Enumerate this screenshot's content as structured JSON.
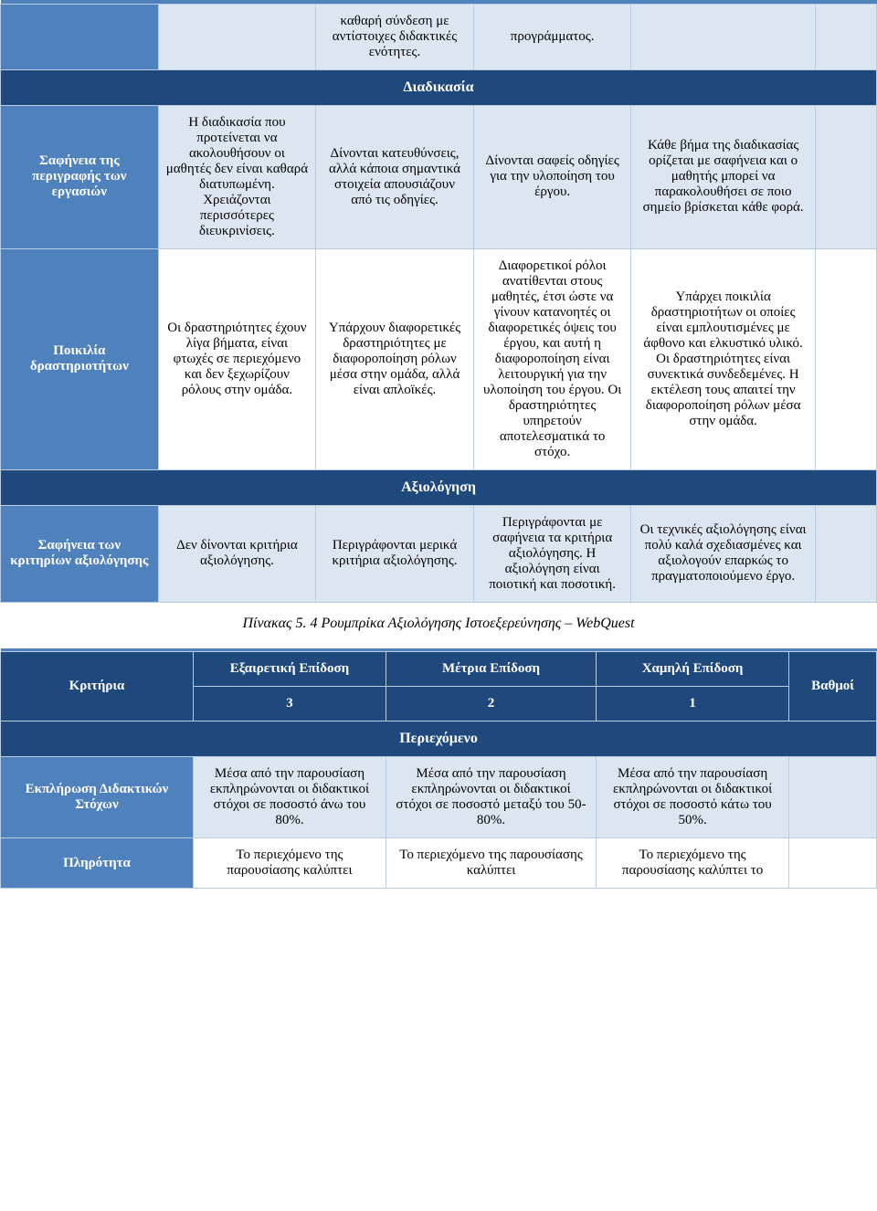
{
  "table1": {
    "fragmentRow": {
      "col2": "καθαρή σύνδεση με αντίστοιχες διδακτικές ενότητες.",
      "col3": "προγράμματος."
    },
    "section1": "Διαδικασία",
    "row1": {
      "header": "Σαφήνεια της περιγραφής των εργασιών",
      "c1": "Η διαδικασία που προτείνεται να ακολουθήσουν οι μαθητές δεν είναι καθαρά διατυπωμένη. Χρειάζονται περισσότερες διευκρινίσεις.",
      "c2": "Δίνονται κατευθύνσεις, αλλά κάποια σημαντικά στοιχεία απουσιάζουν από τις οδηγίες.",
      "c3": "Δίνονται σαφείς οδηγίες για την υλοποίηση του έργου.",
      "c4": "Κάθε βήμα της διαδικασίας ορίζεται με σαφήνεια και ο μαθητής μπορεί να παρακολουθήσει σε ποιο σημείο βρίσκεται κάθε φορά."
    },
    "row2": {
      "header": "Ποικιλία δραστηριοτήτων",
      "c1": "Οι δραστηριότητες έχουν λίγα βήματα, είναι φτωχές σε περιεχόμενο και δεν ξεχωρίζουν ρόλους στην ομάδα.",
      "c2": "Υπάρχουν διαφορετικές δραστηριότητες με διαφοροποίηση ρόλων μέσα στην ομάδα, αλλά είναι απλοϊκές.",
      "c3": "Διαφορετικοί ρόλοι ανατίθενται στους μαθητές, έτσι ώστε να γίνουν κατανοητές οι διαφορετικές όψεις του έργου, και αυτή η διαφοροποίηση είναι λειτουργική για την υλοποίηση του έργου. Οι δραστηριότητες υπηρετούν αποτελεσματικά το στόχο.",
      "c4": "Υπάρχει ποικιλία δραστηριοτήτων οι οποίες είναι εμπλουτισμένες με άφθονο και ελκυστικό υλικό. Οι δραστηριότητες είναι συνεκτικά συνδεδεμένες. Η εκτέλεση τους απαιτεί την διαφοροποίηση ρόλων μέσα στην ομάδα."
    },
    "section2": "Αξιολόγηση",
    "row3": {
      "header": "Σαφήνεια των κριτηρίων αξιολόγησης",
      "c1": "Δεν δίνονται κριτήρια αξιολόγησης.",
      "c2": "Περιγράφονται μερικά κριτήρια αξιολόγησης.",
      "c3": "Περιγράφονται με σαφήνεια τα κριτήρια αξιολόγησης. Η αξιολόγηση είναι ποιοτική και ποσοτική.",
      "c4": "Οι τεχνικές αξιολόγησης είναι πολύ καλά σχεδιασμένες και αξιολογούν επαρκώς το πραγματοποιούμενο έργο."
    }
  },
  "caption": "Πίνακας 5. 4 Ρουμπρίκα Αξιολόγησης Ιστοεξερεύνησης – WebQuest",
  "table2": {
    "headers": {
      "criteria": "Κριτήρια",
      "excellent": "Εξαιρετική Επίδοση",
      "medium": "Μέτρια Επίδοση",
      "low": "Χαμηλή Επίδοση",
      "points": "Βαθμοί",
      "score3": "3",
      "score2": "2",
      "score1": "1"
    },
    "section1": "Περιεχόμενο",
    "row1": {
      "header": "Εκπλήρωση Διδακτικών Στόχων",
      "c1": "Μέσα από την παρουσίαση εκπληρώνονται οι διδακτικοί στόχοι σε ποσοστό άνω του 80%.",
      "c2": "Μέσα από την παρουσίαση εκπληρώνονται οι διδακτικοί στόχοι σε ποσοστό μεταξύ του 50-80%.",
      "c3": "Μέσα από την παρουσίαση εκπληρώνονται οι διδακτικοί στόχοι σε ποσοστό κάτω του 50%."
    },
    "row2": {
      "header": "Πληρότητα",
      "c1": "Το περιεχόμενο της παρουσίασης καλύπτει",
      "c2": "Το περιεχόμενο της παρουσίασης καλύπτει",
      "c3": "Το περιεχόμενο της παρουσίασης καλύπτει το"
    }
  },
  "colors": {
    "darkBlue": "#1f497d",
    "midBlue": "#4f81bd",
    "lightBlue": "#dce6f1",
    "border": "#b8cce4"
  }
}
